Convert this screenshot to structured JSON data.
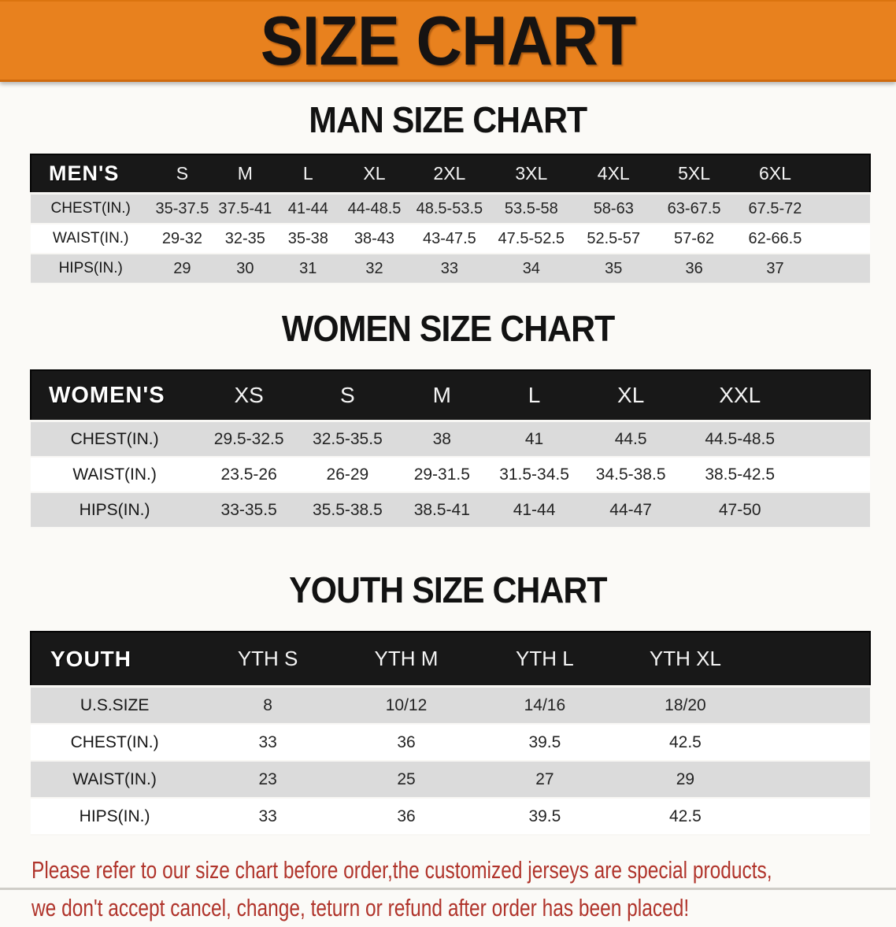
{
  "banner": {
    "title": "SIZE CHART"
  },
  "colors": {
    "banner_bg": "#e8811e",
    "table_header_bg": "#181818",
    "row_stripe": "#dbdbdb",
    "disclaimer_text": "#b0342b"
  },
  "sections": [
    {
      "heading": "MAN SIZE CHART",
      "table": {
        "corner": "MEN'S",
        "sizes": [
          "S",
          "M",
          "L",
          "XL",
          "2XL",
          "3XL",
          "4XL",
          "5XL",
          "6XL"
        ],
        "rows": [
          {
            "label": "CHEST(IN.)",
            "values": [
              "35-37.5",
              "37.5-41",
              "41-44",
              "44-48.5",
              "48.5-53.5",
              "53.5-58",
              "58-63",
              "63-67.5",
              "67.5-72"
            ]
          },
          {
            "label": "WAIST(IN.)",
            "values": [
              "29-32",
              "32-35",
              "35-38",
              "38-43",
              "43-47.5",
              "47.5-52.5",
              "52.5-57",
              "57-62",
              "62-66.5"
            ]
          },
          {
            "label": "HIPS(IN.)",
            "values": [
              "29",
              "30",
              "31",
              "32",
              "33",
              "34",
              "35",
              "36",
              "37"
            ]
          }
        ]
      }
    },
    {
      "heading": "WOMEN SIZE CHART",
      "table": {
        "corner": "WOMEN'S",
        "sizes": [
          "XS",
          "S",
          "M",
          "L",
          "XL",
          "XXL"
        ],
        "rows": [
          {
            "label": "CHEST(IN.)",
            "values": [
              "29.5-32.5",
              "32.5-35.5",
              "38",
              "41",
              "44.5",
              "44.5-48.5"
            ]
          },
          {
            "label": "WAIST(IN.)",
            "values": [
              "23.5-26",
              "26-29",
              "29-31.5",
              "31.5-34.5",
              "34.5-38.5",
              "38.5-42.5"
            ]
          },
          {
            "label": "HIPS(IN.)",
            "values": [
              "33-35.5",
              "35.5-38.5",
              "38.5-41",
              "41-44",
              "44-47",
              "47-50"
            ]
          }
        ]
      }
    },
    {
      "heading": "YOUTH SIZE CHART",
      "table": {
        "corner": "YOUTH",
        "sizes": [
          "YTH S",
          "YTH M",
          "YTH L",
          "YTH XL"
        ],
        "rows": [
          {
            "label": "U.S.SIZE",
            "values": [
              "8",
              "10/12",
              "14/16",
              "18/20"
            ]
          },
          {
            "label": "CHEST(IN.)",
            "values": [
              "33",
              "36",
              "39.5",
              "42.5"
            ]
          },
          {
            "label": "WAIST(IN.)",
            "values": [
              "23",
              "25",
              "27",
              "29"
            ]
          },
          {
            "label": "HIPS(IN.)",
            "values": [
              "33",
              "36",
              "39.5",
              "42.5"
            ]
          }
        ]
      }
    }
  ],
  "disclaimer": {
    "line1": "Please refer to our size chart before order,the customized jerseys are special products,",
    "line2": "we don't accept cancel, change, teturn or refund after order has been placed!"
  }
}
